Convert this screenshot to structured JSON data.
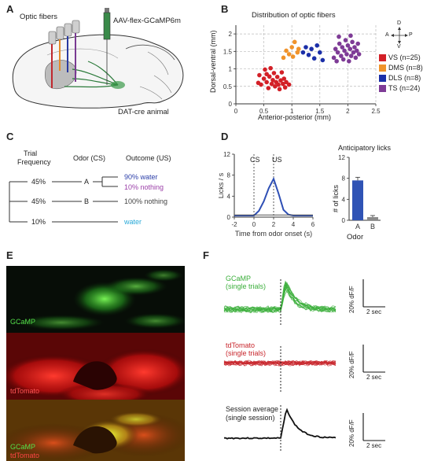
{
  "panels": {
    "a": {
      "letter": "A",
      "optic_fibers_label": "Optic fibers",
      "virus_label": "AAV-flex-GCaMP6m",
      "animal_label": "DAT-cre animal"
    },
    "b": {
      "letter": "B",
      "title": "Distribution of optic fibers",
      "xlabel": "Anterior-posterior (mm)",
      "ylabel": "Dorsal-ventral (mm)",
      "compass": {
        "d": "D",
        "v": "V",
        "a": "A",
        "p": "P"
      },
      "legend": [
        {
          "label": "VS (n=25)",
          "color": "#d32027"
        },
        {
          "label": "DMS (n=8)",
          "color": "#f0932b"
        },
        {
          "label": "DLS (n=8)",
          "color": "#1b2fa8"
        },
        {
          "label": "TS (n=24)",
          "color": "#7e3b96"
        }
      ]
    },
    "c": {
      "letter": "C",
      "col_trial": "Trial",
      "col_freq": "Frequency",
      "col_odor": "Odor (CS)",
      "col_outcome": "Outcome (US)",
      "rows": [
        {
          "freq": "45%",
          "odor": "A",
          "outcomes": [
            {
              "text": "90% water",
              "color": "#2b3ea8"
            },
            {
              "text": "10% nothing",
              "color": "#9b3fa8"
            }
          ]
        },
        {
          "freq": "45%",
          "odor": "B",
          "outcomes": [
            {
              "text": "100% nothing",
              "color": "#444444"
            }
          ]
        },
        {
          "freq": "10%",
          "odor": "",
          "outcomes": [
            {
              "text": "water",
              "color": "#28a9d8"
            }
          ]
        }
      ]
    },
    "d": {
      "letter": "D",
      "cs_label": "CS",
      "us_label": "US",
      "anticipatory_title": "Anticipatory licks",
      "odor_label": "Odor",
      "licks_ylabel": "# of licks"
    },
    "e": {
      "letter": "E",
      "gcamp_label": "GCaMP",
      "tdtomato_label": "tdTomato"
    },
    "f": {
      "letter": "F",
      "gcamp_title": "GCaMP",
      "gcamp_sub": "(single trials)",
      "td_title": "tdTomato",
      "td_sub": "(single trials)",
      "avg_title": "Session average",
      "avg_sub": "(single session)",
      "scale_y": "20% dF/F",
      "scale_x": "2 sec"
    }
  },
  "chart_data": [
    {
      "type": "scatter",
      "title": "Distribution of optic fibers",
      "xlabel": "Anterior-posterior (mm)",
      "ylabel": "Dorsal-ventral (mm)",
      "xlim": [
        0,
        2.5
      ],
      "ylim": [
        0,
        2.25
      ],
      "xticks": [
        0,
        0.5,
        1,
        1.5,
        2,
        2.5
      ],
      "yticks": [
        0,
        0.5,
        1,
        1.5,
        2
      ],
      "grid": true,
      "series": [
        {
          "name": "VS (n=25)",
          "color": "#d32027",
          "points": [
            [
              0.4,
              0.6
            ],
            [
              0.42,
              0.82
            ],
            [
              0.45,
              0.55
            ],
            [
              0.5,
              0.72
            ],
            [
              0.52,
              0.98
            ],
            [
              0.55,
              0.62
            ],
            [
              0.58,
              0.45
            ],
            [
              0.6,
              0.78
            ],
            [
              0.62,
              1.02
            ],
            [
              0.64,
              0.57
            ],
            [
              0.66,
              0.68
            ],
            [
              0.68,
              0.88
            ],
            [
              0.7,
              0.5
            ],
            [
              0.72,
              0.62
            ],
            [
              0.74,
              0.77
            ],
            [
              0.76,
              0.55
            ],
            [
              0.78,
              0.42
            ],
            [
              0.8,
              0.67
            ],
            [
              0.82,
              0.9
            ],
            [
              0.84,
              0.57
            ],
            [
              0.86,
              0.72
            ],
            [
              0.88,
              0.47
            ],
            [
              0.9,
              0.62
            ],
            [
              0.95,
              0.55
            ],
            [
              0.55,
              0.85
            ]
          ]
        },
        {
          "name": "DMS (n=8)",
          "color": "#f0932b",
          "points": [
            [
              0.85,
              1.32
            ],
            [
              0.9,
              1.52
            ],
            [
              0.95,
              1.42
            ],
            [
              1.0,
              1.62
            ],
            [
              1.02,
              1.35
            ],
            [
              1.05,
              1.77
            ],
            [
              1.1,
              1.47
            ],
            [
              1.12,
              1.57
            ]
          ]
        },
        {
          "name": "DLS (n=8)",
          "color": "#1b2fa8",
          "points": [
            [
              1.2,
              1.47
            ],
            [
              1.25,
              1.62
            ],
            [
              1.3,
              1.4
            ],
            [
              1.35,
              1.57
            ],
            [
              1.4,
              1.3
            ],
            [
              1.45,
              1.67
            ],
            [
              1.5,
              1.47
            ],
            [
              1.55,
              1.25
            ]
          ]
        },
        {
          "name": "TS (n=24)",
          "color": "#7e3b96",
          "points": [
            [
              1.75,
              1.32
            ],
            [
              1.78,
              1.57
            ],
            [
              1.8,
              1.22
            ],
            [
              1.82,
              1.47
            ],
            [
              1.85,
              1.72
            ],
            [
              1.88,
              1.37
            ],
            [
              1.9,
              1.62
            ],
            [
              1.92,
              1.27
            ],
            [
              1.94,
              1.52
            ],
            [
              1.96,
              1.82
            ],
            [
              1.98,
              1.42
            ],
            [
              2.0,
              1.67
            ],
            [
              2.02,
              1.22
            ],
            [
              2.04,
              1.57
            ],
            [
              2.06,
              1.37
            ],
            [
              2.08,
              1.77
            ],
            [
              2.1,
              1.47
            ],
            [
              2.12,
              1.62
            ],
            [
              2.14,
              1.32
            ],
            [
              2.16,
              1.52
            ],
            [
              2.18,
              1.72
            ],
            [
              2.2,
              1.42
            ],
            [
              1.84,
              1.92
            ],
            [
              2.05,
              1.95
            ]
          ]
        }
      ]
    },
    {
      "type": "line",
      "xlabel": "Time from odor onset (s)",
      "ylabel": "Licks / s",
      "xlim": [
        -2,
        6
      ],
      "ylim": [
        0,
        12
      ],
      "xticks": [
        -2,
        0,
        2,
        4,
        6
      ],
      "yticks": [
        0,
        4,
        8,
        12
      ],
      "markers": [
        {
          "x": 0,
          "label": "CS"
        },
        {
          "x": 2,
          "label": "US"
        }
      ],
      "series": [
        {
          "name": "A",
          "color": "#2e4fb5",
          "x": [
            -2,
            0,
            0.5,
            1,
            1.5,
            2,
            2.5,
            3,
            3.5,
            4,
            6
          ],
          "y": [
            0.3,
            0.3,
            1.2,
            3.0,
            5.5,
            7.3,
            4.5,
            1.4,
            0.5,
            0.3,
            0.3
          ]
        },
        {
          "name": "B",
          "color": "#555555",
          "x": [
            -2,
            0,
            2,
            4,
            6
          ],
          "y": [
            0.4,
            0.4,
            0.4,
            0.4,
            0.4
          ]
        }
      ]
    },
    {
      "type": "bar",
      "title": "Anticipatory licks",
      "xlabel": "Odor",
      "ylabel": "# of licks",
      "categories": [
        "A",
        "B"
      ],
      "values": [
        7.6,
        0.6
      ],
      "errors": [
        0.6,
        0.3
      ],
      "colors": [
        "#3053b5",
        "#8a8a8a"
      ],
      "ylim": [
        0,
        12
      ],
      "yticks": [
        0,
        4,
        8,
        12
      ]
    }
  ]
}
